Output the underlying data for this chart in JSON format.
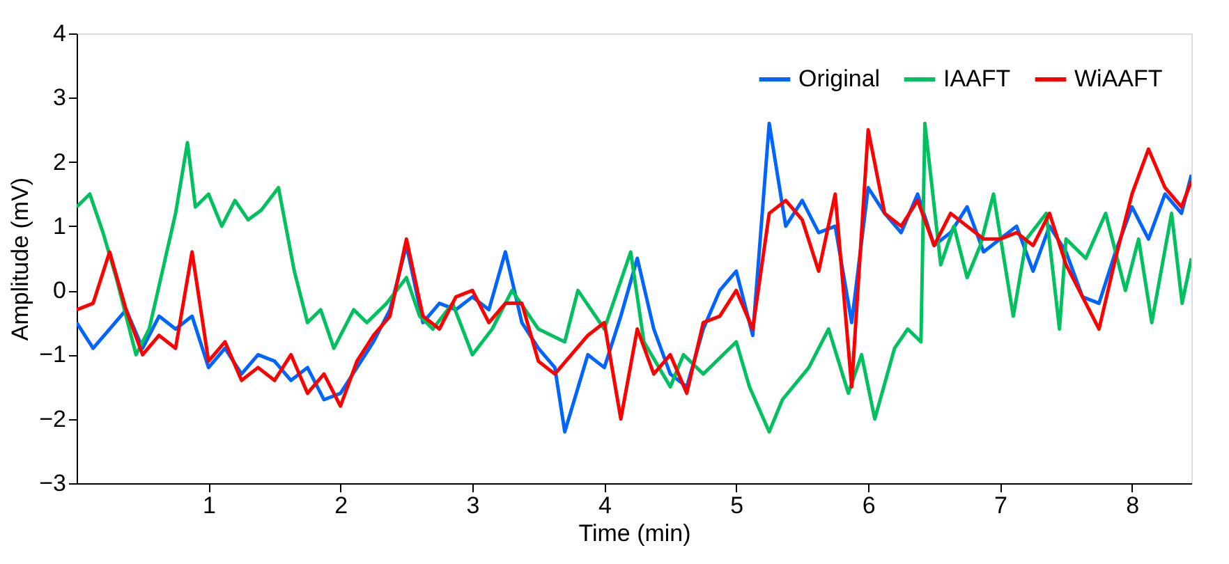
{
  "chart_data": {
    "type": "line",
    "xlabel": "Time (min)",
    "ylabel": "Amplitude (mV)",
    "xlim": [
      0,
      8.45
    ],
    "xticks": [
      1,
      2,
      3,
      4,
      5,
      6,
      7,
      8
    ],
    "ylim": [
      -3,
      4
    ],
    "yticks": [
      -3,
      -2,
      -1,
      0,
      1,
      2,
      3,
      4
    ],
    "grid": false,
    "legend": "top right",
    "line_style": "solid",
    "marker": "none",
    "series": [
      {
        "name": "Original",
        "color": "#0064ff",
        "x": [
          0,
          0.125,
          0.25,
          0.375,
          0.5,
          0.625,
          0.75,
          0.875,
          1.0,
          1.125,
          1.25,
          1.375,
          1.5,
          1.625,
          1.75,
          1.875,
          2.0,
          2.125,
          2.25,
          2.375,
          2.5,
          2.625,
          2.75,
          2.875,
          3.0,
          3.125,
          3.25,
          3.375,
          3.5,
          3.625,
          3.7,
          3.875,
          4.0,
          4.125,
          4.25,
          4.375,
          4.5,
          4.625,
          4.75,
          4.875,
          5.0,
          5.125,
          5.25,
          5.375,
          5.5,
          5.625,
          5.75,
          5.875,
          6.0,
          6.125,
          6.25,
          6.375,
          6.5,
          6.625,
          6.75,
          6.875,
          7.0,
          7.125,
          7.25,
          7.375,
          7.5,
          7.625,
          7.75,
          7.875,
          8.0,
          8.125,
          8.25,
          8.375,
          8.45
        ],
        "values": [
          -0.5,
          -0.9,
          -0.6,
          -0.3,
          -0.9,
          -0.4,
          -0.6,
          -0.4,
          -1.2,
          -0.9,
          -1.3,
          -1.0,
          -1.1,
          -1.4,
          -1.2,
          -1.7,
          -1.6,
          -1.2,
          -0.8,
          -0.3,
          0.7,
          -0.5,
          -0.2,
          -0.3,
          -0.1,
          -0.3,
          0.6,
          -0.5,
          -0.9,
          -1.2,
          -2.2,
          -1.0,
          -1.2,
          -0.4,
          0.5,
          -0.6,
          -1.3,
          -1.5,
          -0.6,
          0.0,
          0.3,
          -0.7,
          2.6,
          1.0,
          1.4,
          0.9,
          1.0,
          -0.5,
          1.6,
          1.2,
          0.9,
          1.5,
          0.7,
          0.9,
          1.3,
          0.6,
          0.8,
          1.0,
          0.3,
          1.0,
          0.6,
          -0.1,
          -0.2,
          0.6,
          1.3,
          0.8,
          1.5,
          1.2,
          1.8
        ]
      },
      {
        "name": "IAAFT",
        "color": "#00c060",
        "x": [
          0,
          0.1,
          0.2,
          0.3,
          0.45,
          0.55,
          0.65,
          0.75,
          0.84,
          0.9,
          1.0,
          1.1,
          1.2,
          1.3,
          1.4,
          1.53,
          1.65,
          1.75,
          1.85,
          1.95,
          2.1,
          2.2,
          2.35,
          2.5,
          2.6,
          2.7,
          2.85,
          3.0,
          3.15,
          3.3,
          3.5,
          3.7,
          3.8,
          4.0,
          4.2,
          4.3,
          4.5,
          4.6,
          4.75,
          5.0,
          5.1,
          5.25,
          5.35,
          5.55,
          5.7,
          5.85,
          5.95,
          6.05,
          6.2,
          6.3,
          6.4,
          6.43,
          6.55,
          6.65,
          6.75,
          6.85,
          6.95,
          7.1,
          7.2,
          7.35,
          7.45,
          7.5,
          7.65,
          7.8,
          7.95,
          8.05,
          8.15,
          8.3,
          8.38,
          8.45
        ],
        "values": [
          1.3,
          1.5,
          0.9,
          0.2,
          -1.0,
          -0.6,
          0.3,
          1.2,
          2.3,
          1.3,
          1.5,
          1.0,
          1.4,
          1.1,
          1.25,
          1.6,
          0.3,
          -0.5,
          -0.3,
          -0.9,
          -0.3,
          -0.5,
          -0.2,
          0.2,
          -0.4,
          -0.6,
          -0.2,
          -1.0,
          -0.6,
          0.0,
          -0.6,
          -0.8,
          0.0,
          -0.6,
          0.6,
          -0.8,
          -1.5,
          -1.0,
          -1.3,
          -0.8,
          -1.5,
          -2.2,
          -1.7,
          -1.2,
          -0.6,
          -1.6,
          -1.0,
          -2.0,
          -0.9,
          -0.6,
          -0.8,
          2.6,
          0.4,
          1.0,
          0.2,
          0.7,
          1.5,
          -0.4,
          0.8,
          1.2,
          -0.6,
          0.8,
          0.5,
          1.2,
          0.0,
          0.8,
          -0.5,
          1.2,
          -0.2,
          0.5
        ]
      },
      {
        "name": "WiAAFT",
        "color": "#ff0000",
        "x": [
          0,
          0.125,
          0.25,
          0.375,
          0.5,
          0.625,
          0.75,
          0.875,
          1.0,
          1.125,
          1.25,
          1.375,
          1.5,
          1.625,
          1.75,
          1.875,
          2.0,
          2.125,
          2.25,
          2.375,
          2.5,
          2.625,
          2.75,
          2.875,
          3.0,
          3.125,
          3.25,
          3.375,
          3.5,
          3.625,
          3.75,
          3.875,
          4.0,
          4.125,
          4.25,
          4.375,
          4.5,
          4.625,
          4.75,
          4.875,
          5.0,
          5.125,
          5.25,
          5.375,
          5.5,
          5.625,
          5.75,
          5.875,
          6.0,
          6.125,
          6.25,
          6.375,
          6.5,
          6.625,
          6.75,
          6.875,
          7.0,
          7.125,
          7.25,
          7.375,
          7.5,
          7.625,
          7.75,
          7.875,
          8.0,
          8.125,
          8.25,
          8.375,
          8.45
        ],
        "values": [
          -0.3,
          -0.2,
          0.6,
          -0.3,
          -1.0,
          -0.7,
          -0.9,
          0.6,
          -1.1,
          -0.8,
          -1.4,
          -1.2,
          -1.4,
          -1.0,
          -1.6,
          -1.3,
          -1.8,
          -1.1,
          -0.7,
          -0.4,
          0.8,
          -0.4,
          -0.6,
          -0.1,
          0.0,
          -0.5,
          -0.2,
          -0.2,
          -1.1,
          -1.3,
          -1.0,
          -0.7,
          -0.5,
          -2.0,
          -0.6,
          -1.3,
          -1.0,
          -1.6,
          -0.5,
          -0.4,
          0.0,
          -0.6,
          1.2,
          1.4,
          1.1,
          0.3,
          1.5,
          -1.5,
          2.5,
          1.2,
          1.0,
          1.4,
          0.7,
          1.2,
          1.0,
          0.8,
          0.8,
          0.9,
          0.7,
          1.2,
          0.4,
          -0.1,
          -0.6,
          0.5,
          1.5,
          2.2,
          1.6,
          1.3,
          1.7
        ]
      }
    ]
  }
}
